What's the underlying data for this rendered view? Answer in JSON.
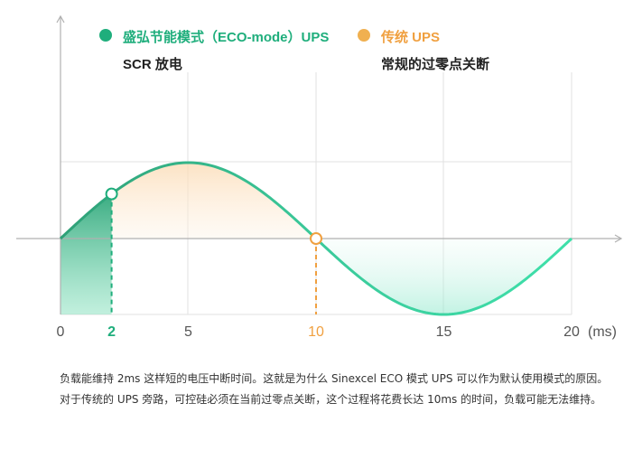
{
  "colors": {
    "eco": "#1fae7c",
    "eco_line": "#3bcf9d",
    "traditional": "#f0a040",
    "axis": "#b0b0b0",
    "grid": "#e2e2e2",
    "text": "#333333"
  },
  "legend": {
    "eco": {
      "title": "盛弘节能模式（ECO-mode）UPS",
      "subtitle": "SCR 放电"
    },
    "traditional": {
      "title": "传统 UPS",
      "subtitle": "常规的过零点关断"
    }
  },
  "axis": {
    "unit": "(ms)",
    "ticks": [
      {
        "label": "0",
        "value": 0,
        "style": "normal"
      },
      {
        "label": "2",
        "value": 2,
        "style": "eco"
      },
      {
        "label": "5",
        "value": 5,
        "style": "normal"
      },
      {
        "label": "10",
        "value": 10,
        "style": "traditional"
      },
      {
        "label": "15",
        "value": 15,
        "style": "normal"
      },
      {
        "label": "20",
        "value": 20,
        "style": "normal"
      }
    ]
  },
  "markers": {
    "eco_switch_ms": 2,
    "traditional_switch_ms": 10
  },
  "caption": {
    "line1": "负载能维持 2ms 这样短的电压中断时间。这就是为什么 Sinexcel ECO 模式 UPS 可以作为默认使用模式的原因。",
    "line2": "对于传统的 UPS 旁路，可控硅必须在当前过零点关断，这个过程将花费长达 10ms 的时间，负载可能无法维持。"
  }
}
